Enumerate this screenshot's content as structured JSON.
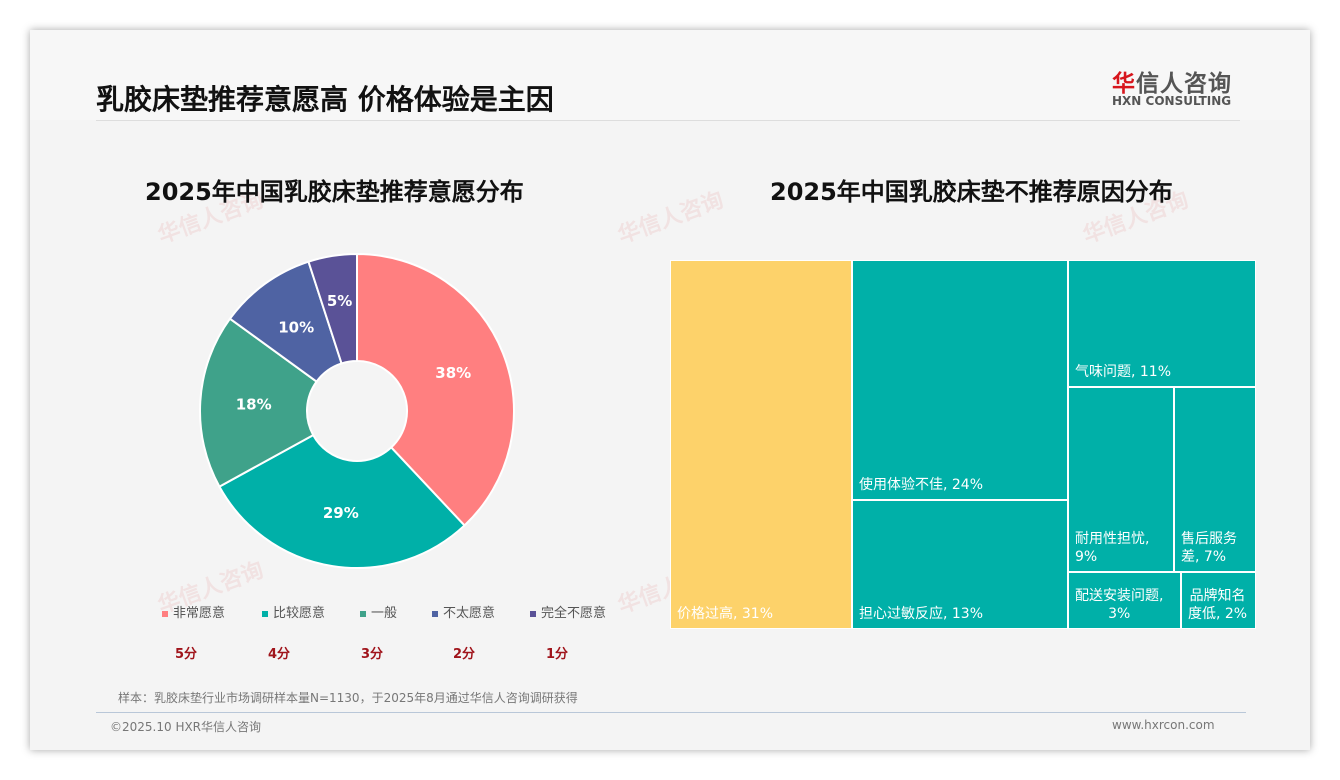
{
  "title": "乳胶床垫推荐意愿高 价格体验是主因",
  "logo": {
    "cn_red": "华",
    "cn": "信人咨询",
    "en": "HXN CONSULTING"
  },
  "note": "样本：乳胶床垫行业市场调研样本量N=1130，于2025年8月通过华信人咨询调研获得",
  "footer": {
    "left": "©2025.10 HXR华信人咨询",
    "right": "www.hxrcon.com"
  },
  "watermark": "华信人咨询",
  "chart_data": [
    {
      "type": "pie",
      "title": "2025年中国乳胶床垫推荐意愿分布",
      "donut": true,
      "categories": [
        "非常愿意",
        "比较愿意",
        "一般",
        "不太愿意",
        "完全不愿意"
      ],
      "values": [
        38,
        29,
        18,
        10,
        5
      ],
      "labels": [
        "38%",
        "29%",
        "18%",
        "10%",
        "5%"
      ],
      "scores": [
        "5分",
        "4分",
        "3分",
        "2分",
        "1分"
      ],
      "colors": [
        "#FF7F80",
        "#00B0A8",
        "#3FA28A",
        "#4F63A3",
        "#5A5297"
      ],
      "legend": "bottom"
    },
    {
      "type": "treemap",
      "title": "2025年中国乳胶床垫不推荐原因分布",
      "categories": [
        "价格过高",
        "使用体验不佳",
        "担心过敏反应",
        "气味问题",
        "耐用性担忧",
        "售后服务差",
        "配送安装问题",
        "品牌知名度低"
      ],
      "values": [
        31,
        24,
        13,
        11,
        9,
        7,
        3,
        2
      ],
      "labels": [
        "价格过高, 31%",
        "使用体验不佳, 24%",
        "担心过敏反应, 13%",
        "气味问题, 11%",
        "耐用性担忧,\n9%",
        "售后服务\n差, 7%",
        "配送安装问题,\n3%",
        "品牌知名\n度低, 2%"
      ],
      "colors": [
        "#FDD26A",
        "#00B0A8"
      ]
    }
  ]
}
